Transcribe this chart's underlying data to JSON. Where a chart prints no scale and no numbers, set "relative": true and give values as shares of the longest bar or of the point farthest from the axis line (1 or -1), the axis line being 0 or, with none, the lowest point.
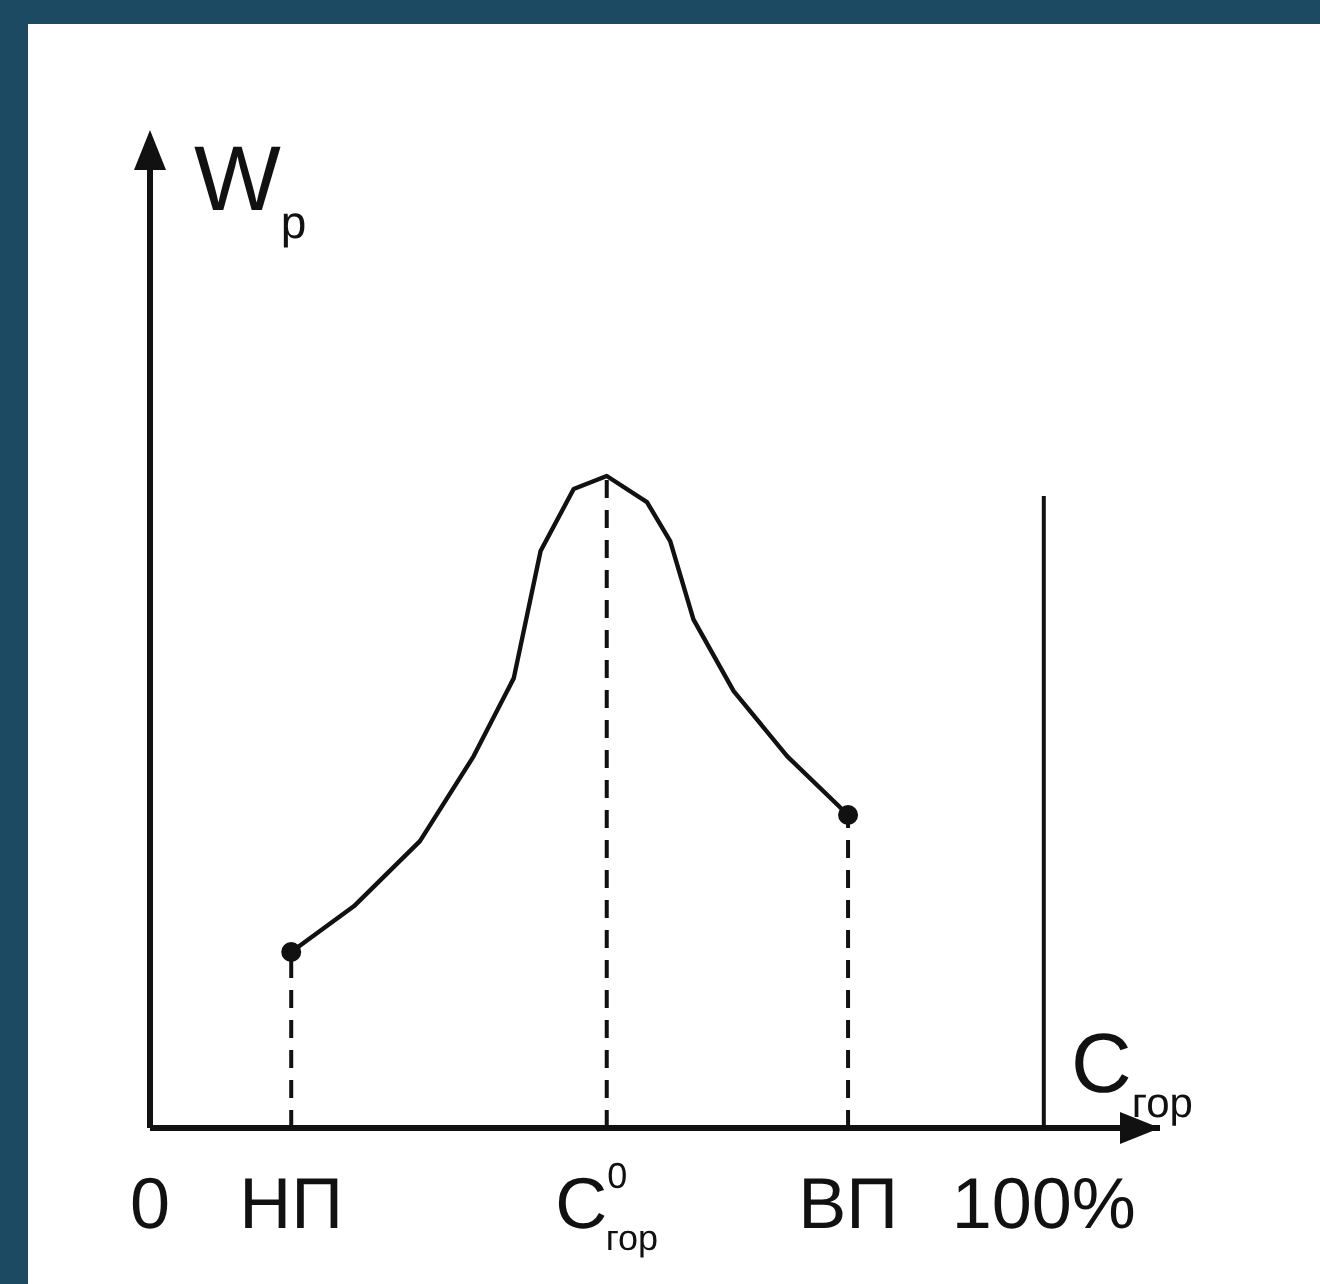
{
  "chart_data": {
    "type": "line",
    "relative": true,
    "xlabel": "С$_{гор}$",
    "ylabel": "W$_{р}$",
    "xlim": [
      0,
      113
    ],
    "xticks": [
      0,
      {
        "value": 100,
        "label": "100%"
      }
    ],
    "annotations": [
      {
        "text": "НП",
        "x": 15.8,
        "y": 0
      },
      {
        "text": "С$^{0}$$_{гор}$",
        "x": 51.1,
        "y": 0
      },
      {
        "text": "ВП",
        "x": 78.1,
        "y": 0
      }
    ],
    "series": [
      {
        "color": "#111111",
        "x": [
          15.8,
          22.8,
          30.2,
          36.2,
          40.7,
          43.7,
          47.4,
          51.1,
          55.6,
          58.2,
          60.8,
          65.3,
          71.3,
          78.1
        ],
        "values": [
          0.27,
          0.34,
          0.44,
          0.57,
          0.69,
          0.885,
          0.98,
          1,
          0.96,
          0.9,
          0.78,
          0.67,
          0.57,
          0.48
        ]
      },
      {
        "type": "scatter",
        "color": "#111111",
        "marker": "circle",
        "x": [
          15.8,
          78.1
        ],
        "values": [
          0.27,
          0.48
        ]
      }
    ],
    "ref_lines": [
      {
        "axis": "x",
        "value": 15.8,
        "line_style": "dashed"
      },
      {
        "axis": "x",
        "value": 51.1,
        "line_style": "dashed"
      },
      {
        "axis": "x",
        "value": 78.1,
        "line_style": "dashed"
      },
      {
        "axis": "x",
        "value": 100,
        "line_style": "solid"
      }
    ],
    "grid": false
  }
}
